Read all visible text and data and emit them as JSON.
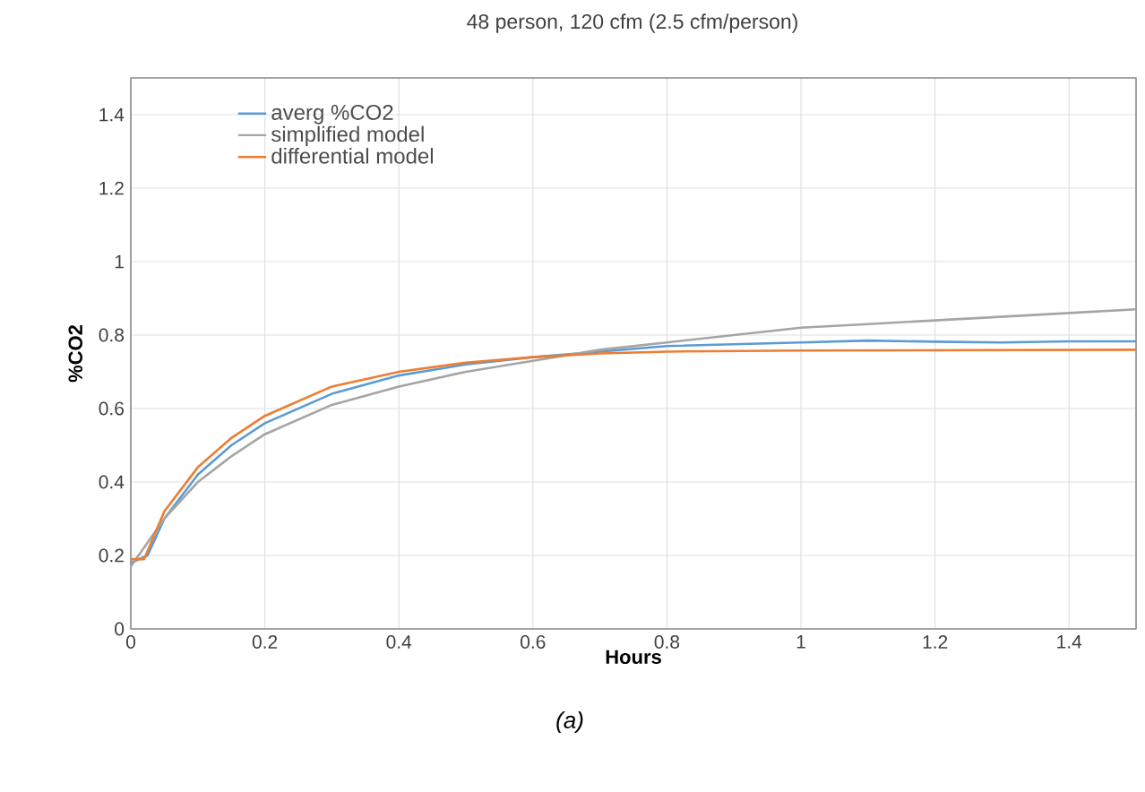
{
  "chart_data": {
    "type": "line",
    "title": "48 person, 120 cfm (2.5 cfm/person)",
    "xlabel": "Hours",
    "ylabel": "%CO2",
    "annotations": [
      "(a)"
    ],
    "xlim": [
      0,
      1.5
    ],
    "xticks": [
      0,
      0.2,
      0.4,
      0.6,
      0.8,
      1,
      1.2,
      1.4
    ],
    "ylim": [
      0,
      1.5
    ],
    "yticks": [
      0,
      0.2,
      0.4,
      0.6,
      0.8,
      1,
      1.2,
      1.4
    ],
    "grid": true,
    "legend": "top left",
    "marker": "none",
    "line_style": "solid",
    "series": [
      {
        "name": "averg %CO2",
        "color": "#5b9bd5",
        "x": [
          0,
          0.025,
          0.05,
          0.1,
          0.15,
          0.2,
          0.3,
          0.4,
          0.5,
          0.6,
          0.7,
          0.8,
          0.9,
          1.0,
          1.1,
          1.2,
          1.3,
          1.4,
          1.5
        ],
        "values": [
          0.18,
          0.2,
          0.3,
          0.42,
          0.5,
          0.56,
          0.64,
          0.69,
          0.72,
          0.74,
          0.755,
          0.77,
          0.775,
          0.78,
          0.785,
          0.782,
          0.78,
          0.783,
          0.783
        ]
      },
      {
        "name": "simplified model",
        "color": "#a5a5a5",
        "x": [
          0,
          0.05,
          0.1,
          0.15,
          0.2,
          0.3,
          0.4,
          0.5,
          0.6,
          0.7,
          0.8,
          0.9,
          1.0,
          1.1,
          1.2,
          1.3,
          1.4,
          1.5
        ],
        "values": [
          0.17,
          0.3,
          0.4,
          0.47,
          0.53,
          0.61,
          0.66,
          0.7,
          0.73,
          0.76,
          0.78,
          0.8,
          0.82,
          0.83,
          0.84,
          0.85,
          0.86,
          0.87
        ]
      },
      {
        "name": "differential model",
        "color": "#ed7d31",
        "x": [
          0,
          0.02,
          0.05,
          0.1,
          0.15,
          0.2,
          0.3,
          0.4,
          0.5,
          0.6,
          0.7,
          0.8,
          1.0,
          1.5
        ],
        "values": [
          0.19,
          0.19,
          0.32,
          0.44,
          0.52,
          0.58,
          0.66,
          0.7,
          0.725,
          0.74,
          0.75,
          0.755,
          0.758,
          0.76
        ]
      }
    ]
  }
}
